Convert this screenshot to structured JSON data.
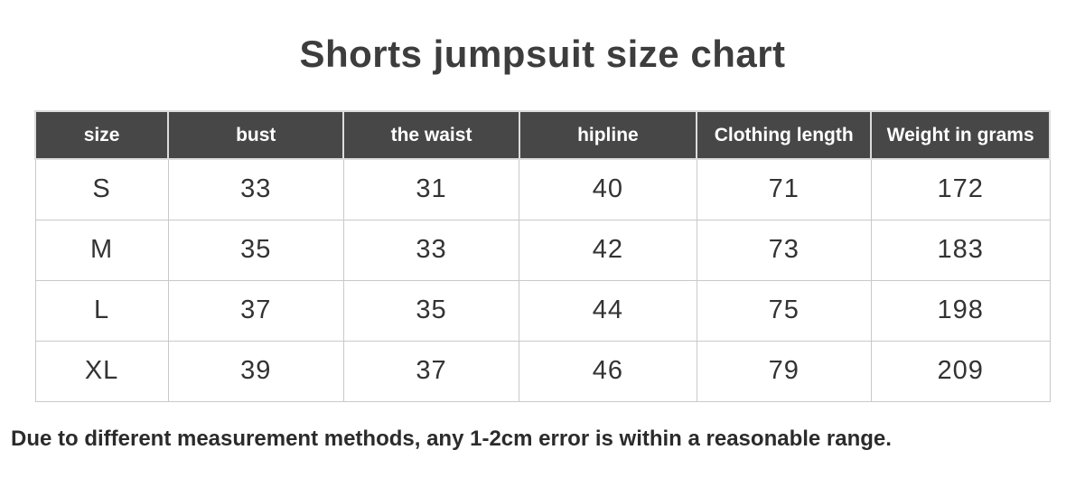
{
  "page": {
    "title": "Shorts jumpsuit size chart",
    "note": "Due to different measurement methods, any 1-2cm error is within a reasonable range."
  },
  "chart_data": {
    "type": "table",
    "title": "Shorts jumpsuit size chart",
    "columns": [
      "size",
      "bust",
      "the waist",
      "hipline",
      "Clothing length",
      "Weight in grams"
    ],
    "rows": [
      [
        "S",
        "33",
        "31",
        "40",
        "71",
        "172"
      ],
      [
        "M",
        "35",
        "33",
        "42",
        "73",
        "183"
      ],
      [
        "L",
        "37",
        "35",
        "44",
        "75",
        "198"
      ],
      [
        "XL",
        "39",
        "37",
        "46",
        "79",
        "209"
      ]
    ],
    "footnote": "Due to different measurement methods, any 1-2cm error is within a reasonable range."
  },
  "colors": {
    "header_background": "#474747",
    "header_text": "#ffffff",
    "body_text": "#333333",
    "cell_border": "#c9c9c9",
    "title_text": "#3d3d3d"
  }
}
